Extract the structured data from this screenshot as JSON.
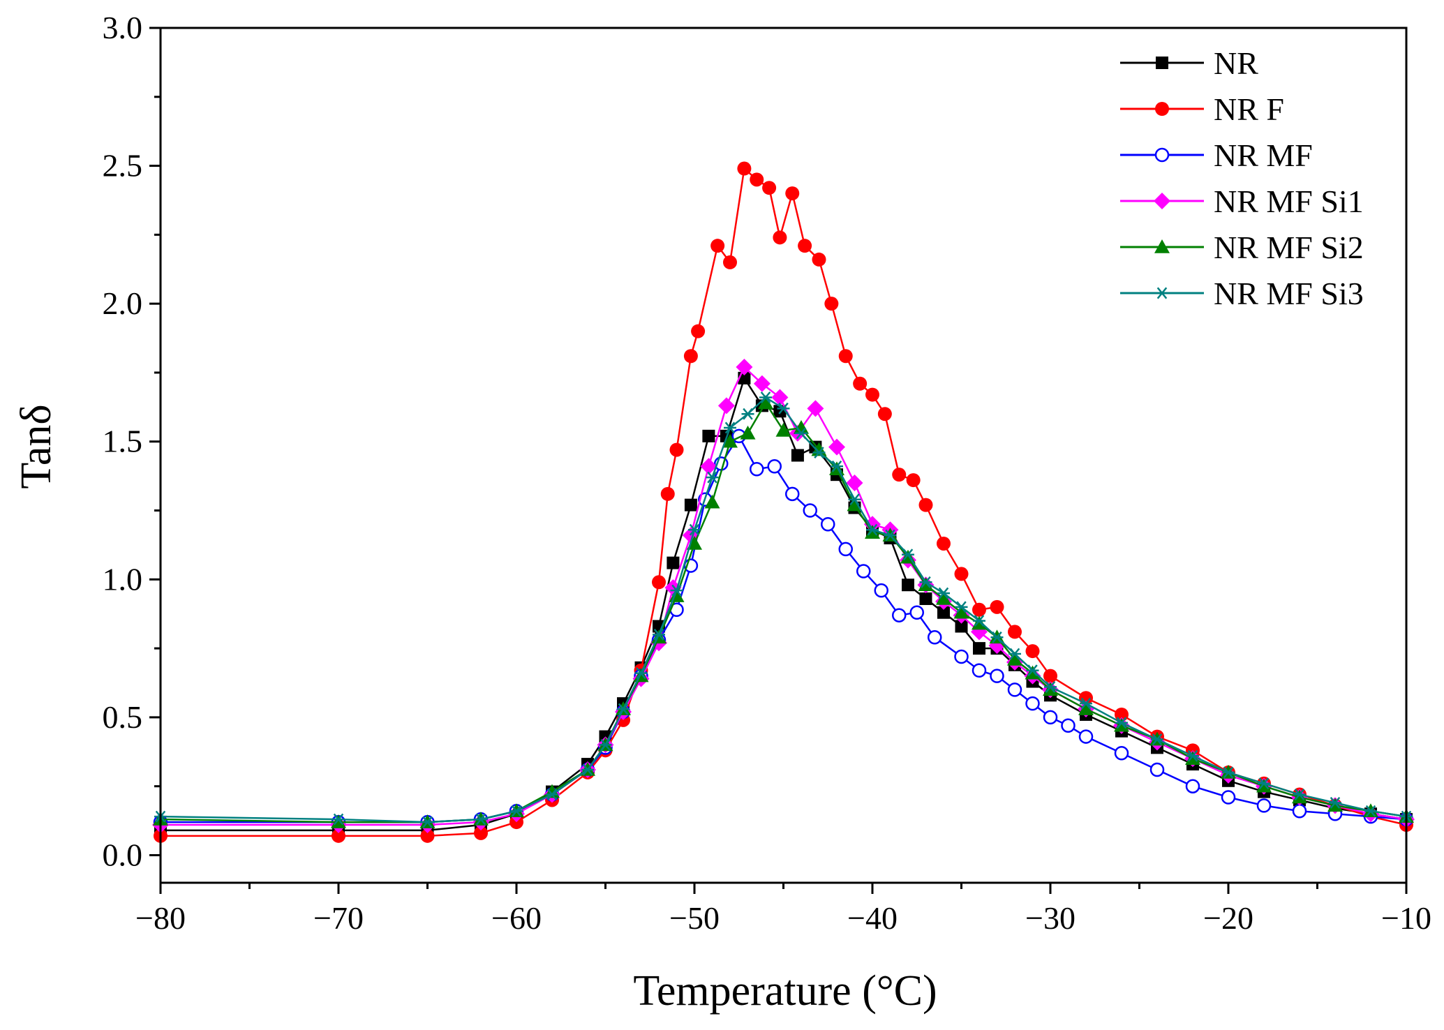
{
  "chart_data": {
    "type": "line",
    "title": "",
    "xlabel": "Temperature (°C)",
    "ylabel": "Tanδ",
    "xlim": [
      -80,
      -10
    ],
    "ylim": [
      -0.1,
      3.0
    ],
    "xticks": [
      -80,
      -70,
      -60,
      -50,
      -40,
      -30,
      -20,
      -10
    ],
    "xtick_labels": [
      "−80",
      "−70",
      "−60",
      "−50",
      "−40",
      "−30",
      "−20",
      "−10"
    ],
    "yticks": [
      0.0,
      0.5,
      1.0,
      1.5,
      2.0,
      2.5,
      3.0
    ],
    "ytick_labels": [
      "0.0",
      "0.5",
      "1.0",
      "1.5",
      "2.0",
      "2.5",
      "3.0"
    ],
    "grid": false,
    "legend_position": "top-right",
    "series": [
      {
        "name": "NR",
        "color": "#000000",
        "marker": "square-filled",
        "x": [
          -80,
          -70,
          -65,
          -62,
          -60,
          -58,
          -56,
          -55,
          -54,
          -53,
          -52,
          -51.2,
          -50.2,
          -49.2,
          -48.2,
          -47.2,
          -46.2,
          -45.2,
          -44.2,
          -43.2,
          -42,
          -41,
          -40,
          -39,
          -38,
          -37,
          -36,
          -35,
          -34,
          -33,
          -32,
          -31,
          -30,
          -28,
          -26,
          -24,
          -22,
          -20,
          -18,
          -16,
          -14,
          -12,
          -10
        ],
        "y": [
          0.09,
          0.09,
          0.09,
          0.11,
          0.15,
          0.23,
          0.33,
          0.43,
          0.55,
          0.68,
          0.83,
          1.06,
          1.27,
          1.52,
          1.52,
          1.73,
          1.63,
          1.61,
          1.45,
          1.48,
          1.38,
          1.26,
          1.18,
          1.15,
          0.98,
          0.93,
          0.88,
          0.83,
          0.75,
          0.75,
          0.69,
          0.63,
          0.58,
          0.51,
          0.45,
          0.39,
          0.33,
          0.27,
          0.23,
          0.2,
          0.17,
          0.15,
          0.13
        ]
      },
      {
        "name": "NR F",
        "color": "#ff0000",
        "marker": "circle-filled",
        "x": [
          -80,
          -70,
          -65,
          -62,
          -60,
          -58,
          -56,
          -55,
          -54,
          -53,
          -52,
          -51.5,
          -51,
          -50.2,
          -49.8,
          -48.7,
          -48,
          -47.2,
          -46.5,
          -45.8,
          -45.2,
          -44.5,
          -43.8,
          -43,
          -42.3,
          -41.5,
          -40.7,
          -40,
          -39.3,
          -38.5,
          -37.7,
          -37,
          -36,
          -35,
          -34,
          -33,
          -32,
          -31,
          -30,
          -28,
          -26,
          -24,
          -22,
          -20,
          -18,
          -16,
          -14,
          -12,
          -10
        ],
        "y": [
          0.07,
          0.07,
          0.07,
          0.08,
          0.12,
          0.2,
          0.3,
          0.38,
          0.49,
          0.67,
          0.99,
          1.31,
          1.47,
          1.81,
          1.9,
          2.21,
          2.15,
          2.49,
          2.45,
          2.42,
          2.24,
          2.4,
          2.21,
          2.16,
          2.0,
          1.81,
          1.71,
          1.67,
          1.6,
          1.38,
          1.36,
          1.27,
          1.13,
          1.02,
          0.89,
          0.9,
          0.81,
          0.74,
          0.65,
          0.57,
          0.51,
          0.43,
          0.38,
          0.3,
          0.26,
          0.22,
          0.18,
          0.14,
          0.11
        ]
      },
      {
        "name": "NR MF",
        "color": "#0000ff",
        "marker": "circle-open",
        "x": [
          -80,
          -70,
          -65,
          -62,
          -60,
          -58,
          -56,
          -55,
          -54,
          -53,
          -52,
          -51,
          -50.2,
          -49.4,
          -48.5,
          -47.5,
          -46.5,
          -45.5,
          -44.5,
          -43.5,
          -42.5,
          -41.5,
          -40.5,
          -39.5,
          -38.5,
          -37.5,
          -36.5,
          -35,
          -34,
          -33,
          -32,
          -31,
          -30,
          -29,
          -28,
          -26,
          -24,
          -22,
          -20,
          -18,
          -16,
          -14,
          -12,
          -10
        ],
        "y": [
          0.12,
          0.12,
          0.12,
          0.13,
          0.16,
          0.22,
          0.31,
          0.39,
          0.52,
          0.65,
          0.78,
          0.89,
          1.05,
          1.29,
          1.42,
          1.52,
          1.4,
          1.41,
          1.31,
          1.25,
          1.2,
          1.11,
          1.03,
          0.96,
          0.87,
          0.88,
          0.79,
          0.72,
          0.67,
          0.65,
          0.6,
          0.55,
          0.5,
          0.47,
          0.43,
          0.37,
          0.31,
          0.25,
          0.21,
          0.18,
          0.16,
          0.15,
          0.14,
          0.13
        ]
      },
      {
        "name": "NR MF Si1",
        "color": "#ff00ff",
        "marker": "diamond-filled",
        "x": [
          -80,
          -70,
          -65,
          -62,
          -60,
          -58,
          -56,
          -55,
          -54,
          -53,
          -52,
          -51.2,
          -50.2,
          -49.2,
          -48.2,
          -47.2,
          -46.2,
          -45.2,
          -44.2,
          -43.2,
          -42,
          -41,
          -40,
          -39,
          -38,
          -37,
          -36,
          -35,
          -34,
          -33,
          -32,
          -31,
          -30,
          -28,
          -26,
          -24,
          -22,
          -20,
          -18,
          -16,
          -14,
          -12,
          -10
        ],
        "y": [
          0.11,
          0.11,
          0.11,
          0.12,
          0.15,
          0.22,
          0.31,
          0.4,
          0.52,
          0.64,
          0.77,
          0.97,
          1.16,
          1.41,
          1.63,
          1.77,
          1.71,
          1.66,
          1.53,
          1.62,
          1.48,
          1.35,
          1.2,
          1.18,
          1.07,
          0.98,
          0.92,
          0.87,
          0.81,
          0.76,
          0.7,
          0.65,
          0.6,
          0.53,
          0.47,
          0.41,
          0.35,
          0.29,
          0.25,
          0.21,
          0.18,
          0.15,
          0.13
        ]
      },
      {
        "name": "NR MF Si2",
        "color": "#008000",
        "marker": "triangle-filled",
        "x": [
          -80,
          -70,
          -65,
          -62,
          -60,
          -58,
          -56,
          -55,
          -54,
          -53,
          -52,
          -51,
          -50,
          -49,
          -48,
          -47,
          -46,
          -45,
          -44,
          -43,
          -42,
          -41,
          -40,
          -39,
          -38,
          -37,
          -36,
          -35,
          -34,
          -33,
          -32,
          -31,
          -30,
          -28,
          -26,
          -24,
          -22,
          -20,
          -18,
          -16,
          -14,
          -12,
          -10
        ],
        "y": [
          0.13,
          0.12,
          0.12,
          0.13,
          0.16,
          0.23,
          0.31,
          0.4,
          0.53,
          0.65,
          0.79,
          0.94,
          1.13,
          1.28,
          1.5,
          1.53,
          1.64,
          1.54,
          1.55,
          1.47,
          1.4,
          1.27,
          1.17,
          1.16,
          1.08,
          0.98,
          0.93,
          0.88,
          0.84,
          0.79,
          0.71,
          0.66,
          0.6,
          0.53,
          0.47,
          0.42,
          0.35,
          0.3,
          0.25,
          0.21,
          0.18,
          0.16,
          0.14
        ]
      },
      {
        "name": "NR MF Si3",
        "color": "#008080",
        "marker": "asterisk",
        "x": [
          -80,
          -70,
          -65,
          -62,
          -60,
          -58,
          -56,
          -55,
          -54,
          -53,
          -52,
          -51,
          -50,
          -49,
          -48,
          -47,
          -46,
          -45,
          -44,
          -43,
          -42,
          -41,
          -40,
          -39,
          -38,
          -37,
          -36,
          -35,
          -34,
          -33,
          -32,
          -31,
          -30,
          -28,
          -26,
          -24,
          -22,
          -20,
          -18,
          -16,
          -14,
          -12,
          -10
        ],
        "y": [
          0.14,
          0.13,
          0.12,
          0.13,
          0.16,
          0.22,
          0.31,
          0.4,
          0.53,
          0.66,
          0.8,
          0.96,
          1.18,
          1.37,
          1.55,
          1.6,
          1.66,
          1.62,
          1.53,
          1.46,
          1.41,
          1.29,
          1.18,
          1.16,
          1.09,
          0.99,
          0.95,
          0.9,
          0.85,
          0.79,
          0.73,
          0.67,
          0.61,
          0.55,
          0.48,
          0.42,
          0.36,
          0.3,
          0.26,
          0.22,
          0.19,
          0.16,
          0.14
        ]
      }
    ]
  }
}
